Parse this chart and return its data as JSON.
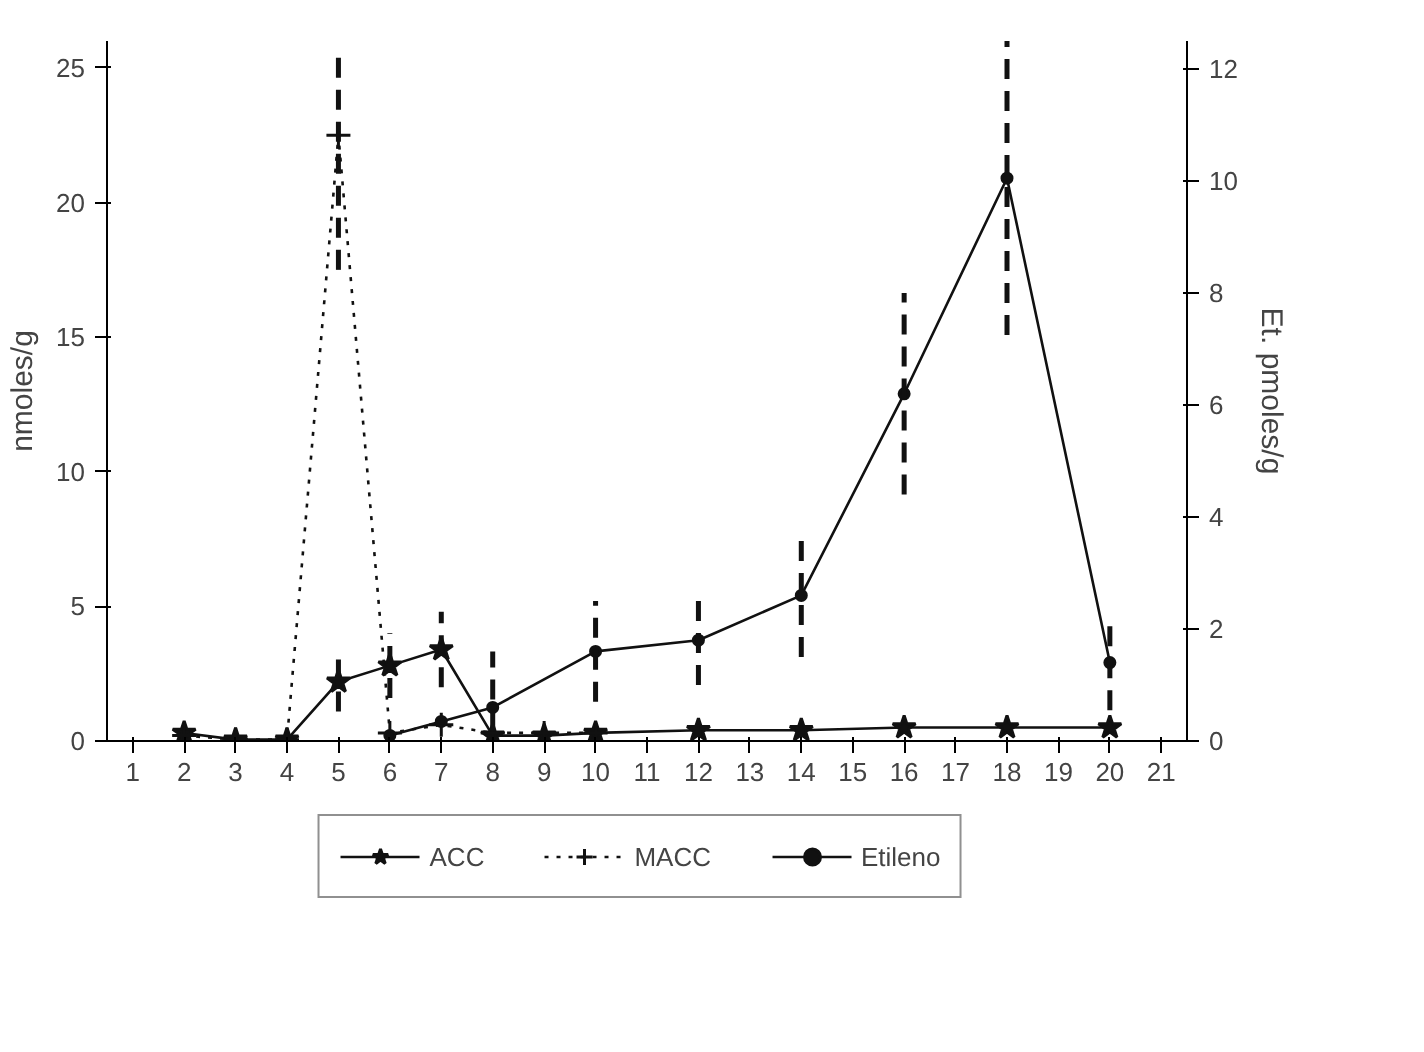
{
  "chart_data": {
    "type": "line",
    "xlabel": null,
    "ylabel": "nmoles/g",
    "y2label": "Et. pmoles/g",
    "xlim": [
      0.5,
      21.5
    ],
    "xticks": [
      1,
      2,
      3,
      4,
      5,
      6,
      7,
      8,
      9,
      10,
      11,
      12,
      13,
      14,
      15,
      16,
      17,
      18,
      19,
      20,
      21
    ],
    "ylim": [
      0,
      26
    ],
    "yticks": [
      0,
      5,
      10,
      15,
      20,
      25
    ],
    "y2lim": [
      0,
      12.5
    ],
    "y2ticks": [
      0,
      2,
      4,
      6,
      8,
      10,
      12
    ],
    "grid": false,
    "legend": "bottom",
    "series": [
      {
        "name": "ACC",
        "color": "#111111",
        "marker": "star",
        "line_style": "solid",
        "x": [
          2,
          3,
          4,
          5,
          6,
          7,
          8,
          9,
          10,
          12,
          14,
          16,
          18,
          20
        ],
        "values": [
          0.3,
          0.05,
          0.05,
          2.2,
          2.8,
          3.4,
          0.2,
          0.2,
          0.3,
          0.4,
          0.4,
          0.5,
          0.5,
          0.5
        ],
        "errors": [
          null,
          null,
          null,
          1.1,
          1.2,
          1.4,
          null,
          null,
          null,
          null,
          null,
          null,
          null,
          null
        ]
      },
      {
        "name": "MACC",
        "color": "#111111",
        "marker": "cross",
        "line_style": "dotted",
        "x": [
          2,
          3,
          4,
          5,
          6,
          7,
          8,
          9,
          10
        ],
        "values": [
          0.2,
          0.05,
          0.05,
          22.5,
          0.3,
          0.6,
          0.3,
          0.3,
          0.3
        ],
        "errors": [
          null,
          null,
          null,
          [
            17.5,
            25.5
          ],
          null,
          null,
          null,
          null,
          null
        ]
      },
      {
        "name": "Etileno",
        "color": "#111111",
        "marker": "circle",
        "line_style": "solid",
        "axis": "y2",
        "x": [
          6,
          7,
          8,
          10,
          12,
          14,
          16,
          18,
          20
        ],
        "values": [
          0.1,
          0.35,
          0.6,
          1.6,
          1.8,
          2.6,
          6.2,
          10.05,
          1.4
        ],
        "errors": [
          null,
          null,
          1.0,
          0.9,
          0.8,
          1.1,
          1.8,
          2.8,
          0.85
        ]
      }
    ]
  }
}
